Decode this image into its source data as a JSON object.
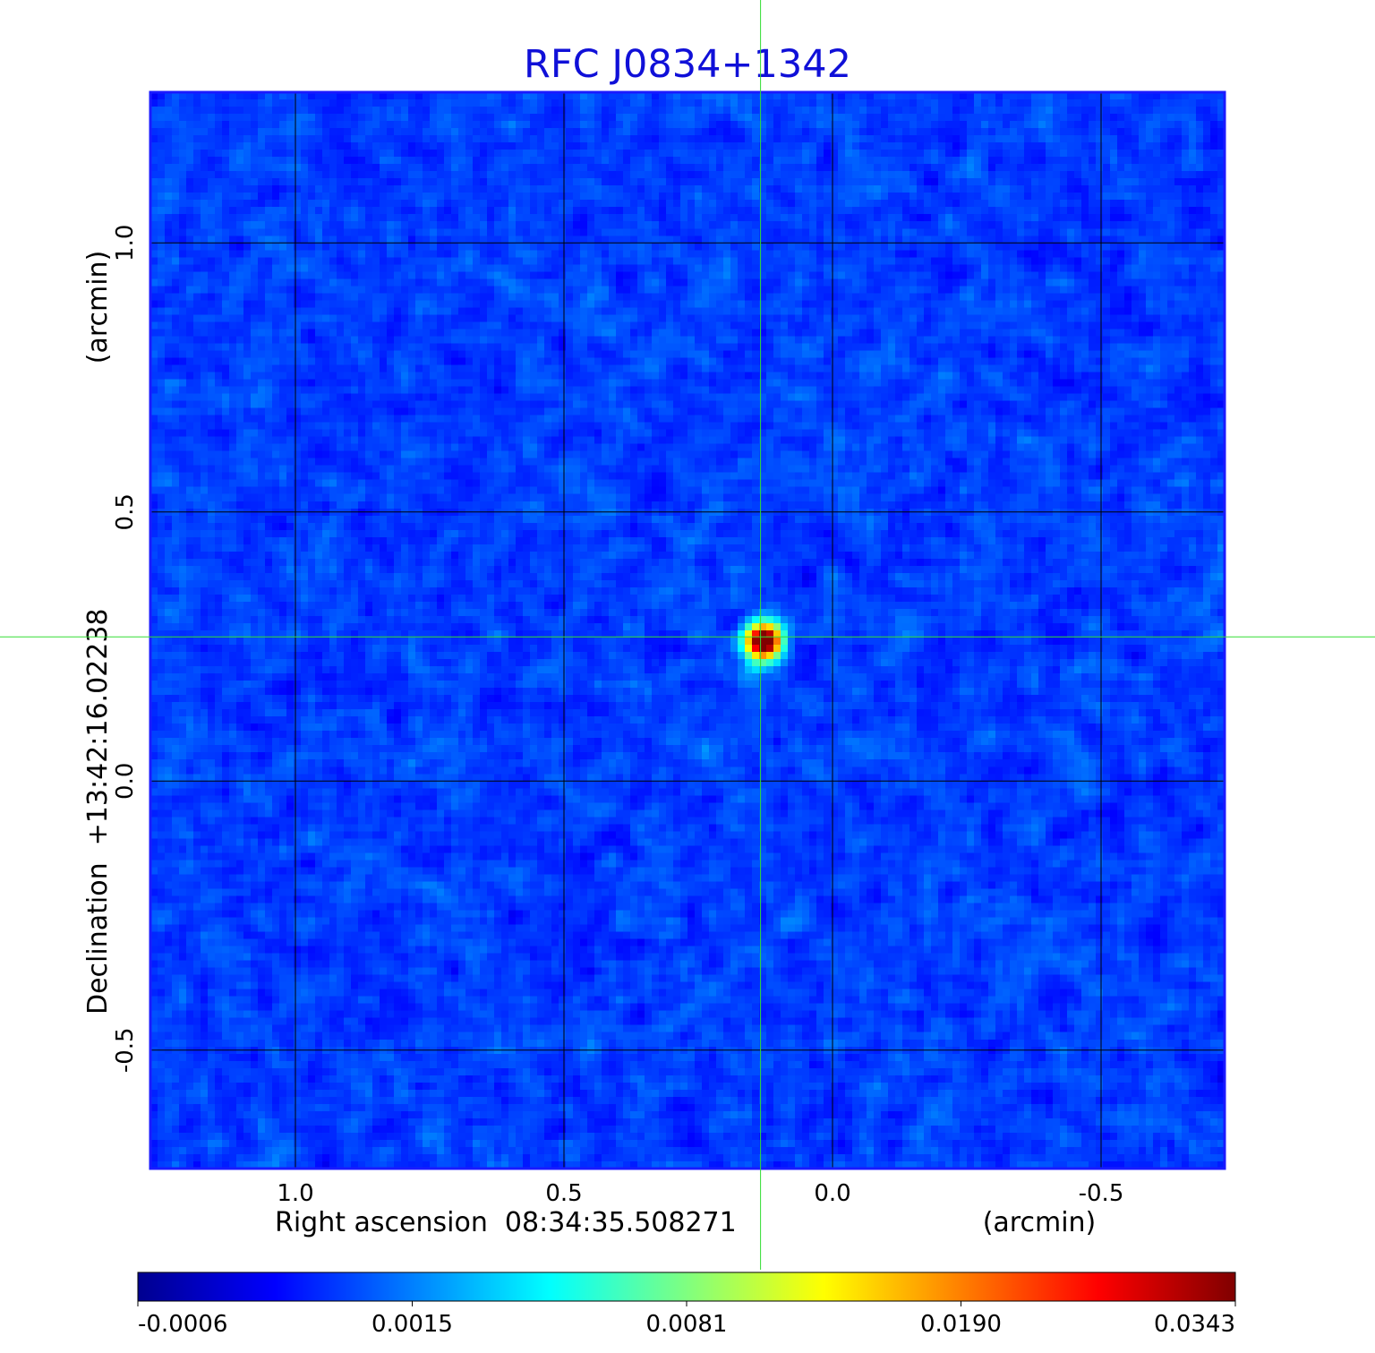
{
  "chart_data": {
    "type": "heatmap",
    "title": "RFC J0834+1342",
    "xlabel": "Right ascension  08:34:35.508271",
    "xunit": "(arcmin)",
    "ylabel": "Declination  +13:42:16.02238",
    "yunit": "(arcmin)",
    "x_range": [
      1.27,
      -0.73
    ],
    "y_range": [
      -0.72,
      1.28
    ],
    "x_ticks": [
      {
        "value": 1.0,
        "label": "1.0"
      },
      {
        "value": 0.5,
        "label": "0.5"
      },
      {
        "value": 0.0,
        "label": "0.0"
      },
      {
        "value": -0.5,
        "label": "-0.5"
      }
    ],
    "y_ticks": [
      {
        "value": 1.0,
        "label": "1.0"
      },
      {
        "value": 0.5,
        "label": "0.5"
      },
      {
        "value": 0.0,
        "label": "0.0"
      },
      {
        "value": -0.5,
        "label": "-0.5"
      }
    ],
    "grid": true,
    "crosshair": {
      "x": 0.134,
      "y": 0.268,
      "color": "#33dd33"
    },
    "source_peak": {
      "x": 0.134,
      "y": 0.268,
      "value": 0.0343
    },
    "colormap": "jet",
    "colorbar": {
      "position": "bottom",
      "ticks": [
        {
          "value": -0.0006,
          "label": "-0.0006"
        },
        {
          "value": 0.0015,
          "label": "0.0015"
        },
        {
          "value": 0.0081,
          "label": "0.0081"
        },
        {
          "value": 0.019,
          "label": "0.0190"
        },
        {
          "value": 0.0343,
          "label": "0.0343"
        }
      ]
    }
  }
}
